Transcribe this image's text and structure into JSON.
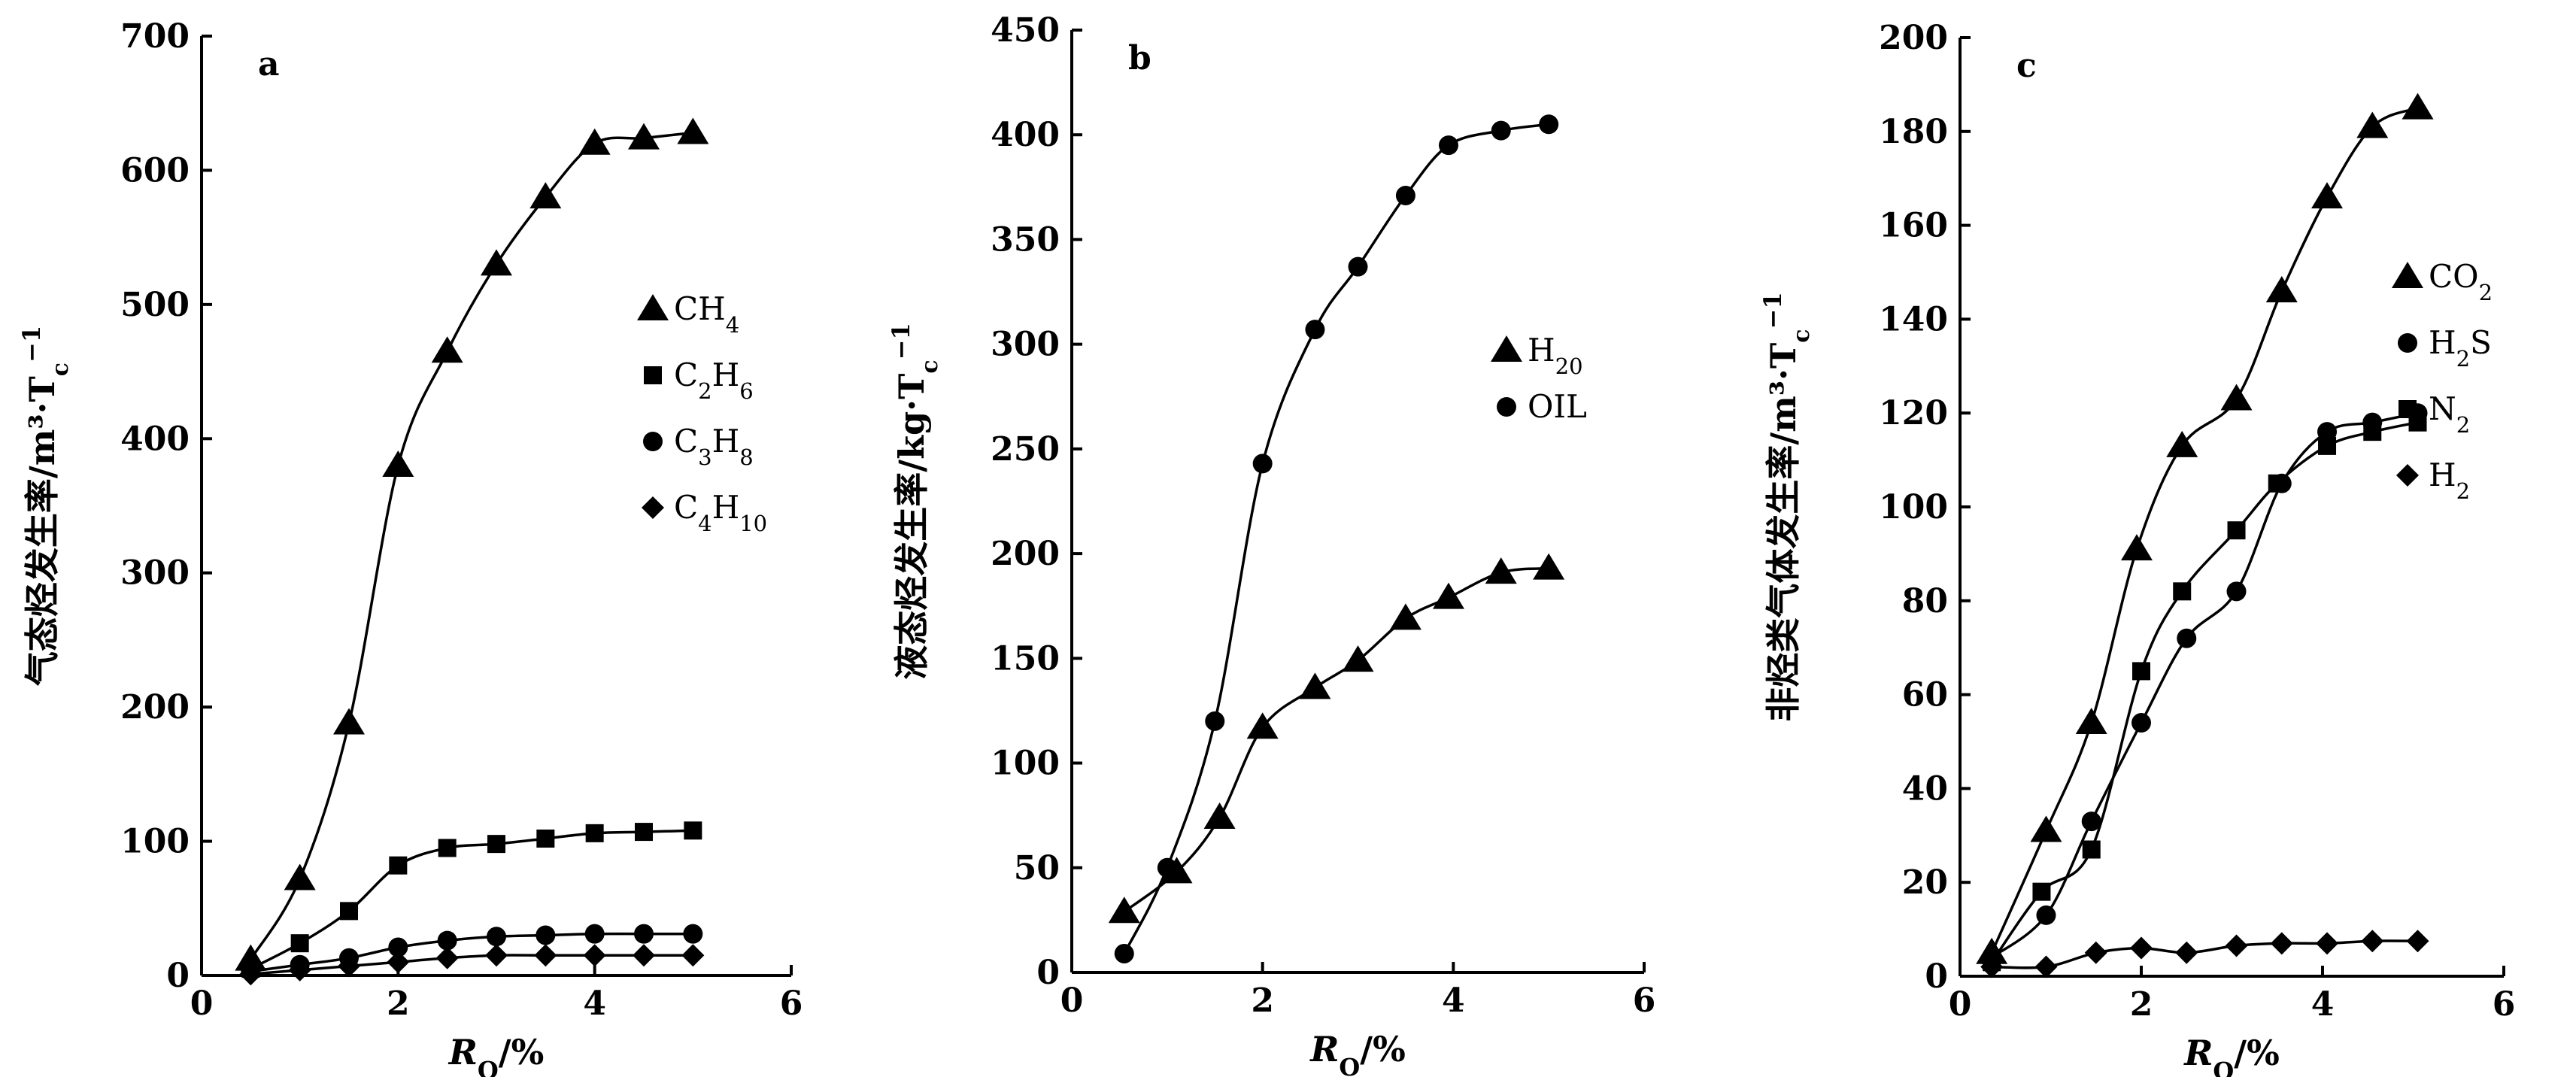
{
  "chart_data": [
    {
      "panel_label": "a",
      "type": "line",
      "ylabel": "气态烃发生率/m³·T_c⁻¹",
      "ylabel_text": "气态烃发生率/m³·T",
      "ylabel_sub": "c",
      "ylabel_sup": "−1",
      "xlabel_main": "R",
      "xlabel_sub": "O",
      "xlabel_unit": "/%",
      "xlim": [
        0,
        6
      ],
      "ylim": [
        0,
        700
      ],
      "xticks": [
        "0",
        "2",
        "4",
        "6"
      ],
      "yticks": [
        "0",
        "100",
        "200",
        "300",
        "400",
        "500",
        "600",
        "700"
      ],
      "series": [
        {
          "name": "CH₄",
          "name_main": "CH",
          "name_sub": "4",
          "marker": "triangle",
          "x": [
            0.5,
            1.0,
            1.5,
            2.0,
            2.5,
            3.0,
            3.5,
            4.0,
            4.5,
            5.0
          ],
          "y": [
            12,
            72,
            188,
            380,
            465,
            530,
            580,
            620,
            624,
            628
          ]
        },
        {
          "name": "C₂H₆",
          "name_parts": [
            "C",
            "2",
            "H",
            "6"
          ],
          "marker": "square",
          "x": [
            0.5,
            1.0,
            1.5,
            2.0,
            2.5,
            3.0,
            3.5,
            4.0,
            4.5,
            5.0
          ],
          "y": [
            5,
            24,
            48,
            82,
            95,
            98,
            102,
            106,
            107,
            108
          ]
        },
        {
          "name": "C₃H₈",
          "name_parts": [
            "C",
            "3",
            "H",
            "8"
          ],
          "marker": "circle",
          "x": [
            0.5,
            1.0,
            1.5,
            2.0,
            2.5,
            3.0,
            3.5,
            4.0,
            4.5,
            5.0
          ],
          "y": [
            3,
            8,
            13,
            21,
            26,
            29,
            30,
            31,
            31,
            31
          ]
        },
        {
          "name": "C₄H₁₀",
          "name_parts": [
            "C",
            "4",
            "H",
            "10"
          ],
          "marker": "diamond",
          "x": [
            0.5,
            1.0,
            1.5,
            2.0,
            2.5,
            3.0,
            3.5,
            4.0,
            4.5,
            5.0
          ],
          "y": [
            1,
            4,
            7,
            10,
            13,
            15,
            15,
            15,
            15,
            15
          ]
        }
      ]
    },
    {
      "panel_label": "b",
      "type": "line",
      "ylabel": "液态烃发生率/kg·T_c⁻¹",
      "ylabel_text": "液态烃发生率/kg·T",
      "ylabel_sub": "c",
      "ylabel_sup": "−1",
      "xlabel_main": "R",
      "xlabel_sub": "O",
      "xlabel_unit": "/%",
      "xlim": [
        0,
        6
      ],
      "ylim": [
        0,
        450
      ],
      "xticks": [
        "0",
        "2",
        "4",
        "6"
      ],
      "yticks": [
        "0",
        "50",
        "100",
        "150",
        "200",
        "250",
        "300",
        "350",
        "400",
        "450"
      ],
      "series": [
        {
          "name": "H₂0",
          "name_parts": [
            "H",
            "2",
            "0"
          ],
          "marker": "triangle",
          "x": [
            0.55,
            1.1,
            1.55,
            2.0,
            2.55,
            3.0,
            3.5,
            3.95,
            4.5,
            5.0
          ],
          "y": [
            29,
            48,
            74,
            117,
            136,
            149,
            169,
            179,
            191,
            193
          ]
        },
        {
          "name": "OIL",
          "name_parts": [
            "OIL"
          ],
          "marker": "circle",
          "x": [
            0.55,
            1.0,
            1.5,
            2.0,
            2.55,
            3.0,
            3.5,
            3.95,
            4.5,
            5.0
          ],
          "y": [
            9,
            50,
            120,
            243,
            307,
            337,
            371,
            395,
            402,
            405
          ]
        }
      ]
    },
    {
      "panel_label": "c",
      "type": "line",
      "ylabel": "非烃类气体发生率/m³·T_c⁻¹",
      "ylabel_text": "非烃类气体发生率/m³·T",
      "ylabel_sub": "c",
      "ylabel_sup": "−1",
      "xlabel_main": "R",
      "xlabel_sub": "O",
      "xlabel_unit": "/%",
      "xlim": [
        0,
        6
      ],
      "ylim": [
        0,
        200
      ],
      "xticks": [
        "0",
        "2",
        "4",
        "6"
      ],
      "yticks": [
        "0",
        "20",
        "40",
        "60",
        "80",
        "100",
        "120",
        "140",
        "160",
        "180",
        "200"
      ],
      "series": [
        {
          "name": "CO₂",
          "name_parts": [
            "CO",
            "2"
          ],
          "marker": "triangle",
          "x": [
            0.35,
            0.95,
            1.45,
            1.95,
            2.45,
            3.05,
            3.55,
            4.05,
            4.55,
            5.05
          ],
          "y": [
            5,
            31,
            54,
            91,
            113,
            123,
            146,
            166,
            181,
            185
          ]
        },
        {
          "name": "H₂S",
          "name_parts": [
            "H",
            "2",
            "S"
          ],
          "marker": "circle",
          "x": [
            0.35,
            0.95,
            1.45,
            2.0,
            2.5,
            3.05,
            3.55,
            4.05,
            4.55,
            5.05
          ],
          "y": [
            4,
            13,
            33,
            54,
            72,
            82,
            105,
            116,
            118,
            120
          ]
        },
        {
          "name": "N₂",
          "name_parts": [
            "N",
            "2"
          ],
          "marker": "square",
          "x": [
            0.35,
            0.9,
            1.45,
            2.0,
            2.45,
            3.05,
            3.5,
            4.05,
            4.55,
            5.05
          ],
          "y": [
            3,
            18,
            27,
            65,
            82,
            95,
            105,
            113,
            116,
            118
          ]
        },
        {
          "name": "H₂",
          "name_parts": [
            "H",
            "2"
          ],
          "marker": "diamond",
          "x": [
            0.35,
            0.95,
            1.5,
            2.0,
            2.5,
            3.05,
            3.55,
            4.05,
            4.55,
            5.05
          ],
          "y": [
            2,
            2,
            5,
            6,
            5,
            6.5,
            7,
            7,
            7.5,
            7.5
          ]
        }
      ]
    }
  ]
}
